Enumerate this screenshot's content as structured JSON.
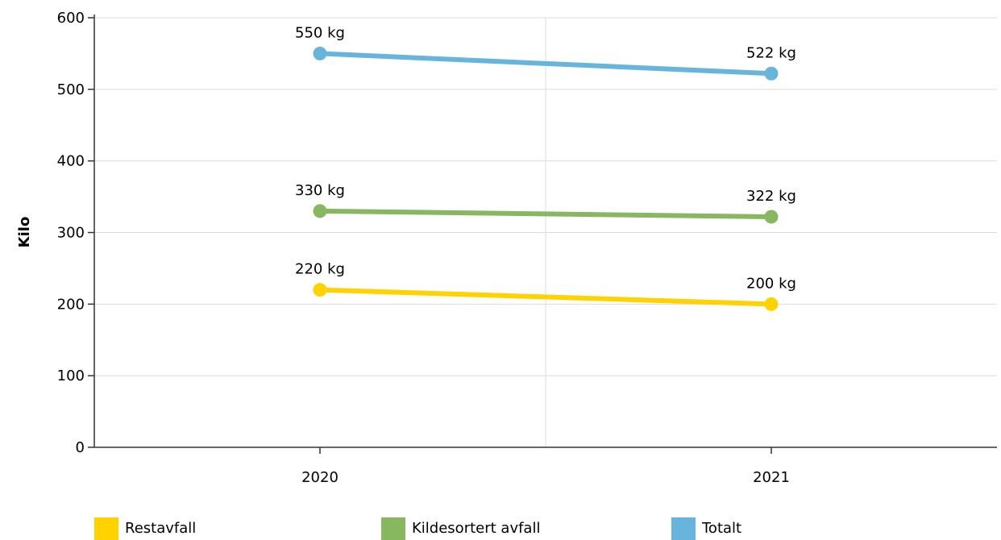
{
  "chart_data": {
    "type": "line",
    "title": "",
    "xlabel": "",
    "ylabel": "Kilo",
    "categories": [
      "2020",
      "2021"
    ],
    "ylim": [
      0,
      600
    ],
    "yticks": [
      0,
      100,
      200,
      300,
      400,
      500,
      600
    ],
    "grid": true,
    "legend_position": "bottom",
    "series": [
      {
        "name": "Restavfall",
        "values": [
          220,
          200
        ],
        "labels": [
          "220 kg",
          "200 kg"
        ],
        "color": "#FFD200"
      },
      {
        "name": "Kildesortert avfall",
        "values": [
          330,
          322
        ],
        "labels": [
          "330 kg",
          "322 kg"
        ],
        "color": "#87B75F"
      },
      {
        "name": "Totalt",
        "values": [
          550,
          522
        ],
        "labels": [
          "550 kg",
          "522 kg"
        ],
        "color": "#67B5DD"
      }
    ]
  }
}
